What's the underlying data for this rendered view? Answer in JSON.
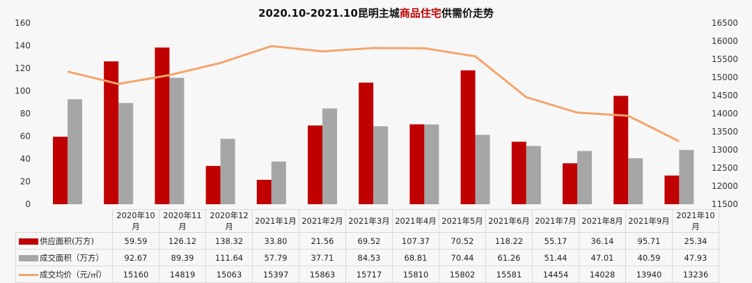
{
  "title": {
    "part1": "2020.10-2021.10昆明主城",
    "highlight": "商品住宅",
    "part2": "供需价走势"
  },
  "chart_data": {
    "type": "bar+line",
    "categories": [
      "2020年10月",
      "2020年11月",
      "2020年12月",
      "2021年1月",
      "2021年2月",
      "2021年3月",
      "2021年4月",
      "2021年5月",
      "2021年6月",
      "2021年7月",
      "2021年8月",
      "2021年9月",
      "2021年10月"
    ],
    "series": [
      {
        "name": "供应面积(万方)",
        "type": "bar",
        "axis": "left",
        "color": "#c00000",
        "values": [
          59.59,
          126.12,
          138.32,
          33.8,
          21.56,
          69.52,
          107.37,
          70.52,
          118.22,
          55.17,
          36.14,
          95.71,
          25.34
        ]
      },
      {
        "name": "成交面积（万方）",
        "type": "bar",
        "axis": "left",
        "color": "#a6a6a6",
        "values": [
          92.67,
          89.39,
          111.64,
          57.79,
          37.71,
          84.53,
          68.81,
          70.44,
          61.26,
          51.44,
          47.01,
          40.59,
          47.93
        ]
      },
      {
        "name": "成交均价（元/㎡）",
        "type": "line",
        "axis": "right",
        "color": "#f4a46a",
        "values": [
          15160,
          14819,
          15063,
          15397,
          15863,
          15717,
          15810,
          15802,
          15581,
          14454,
          14028,
          13940,
          13236
        ]
      }
    ],
    "left_ylim": [
      0,
      160
    ],
    "left_ticks": [
      "0",
      "20",
      "40",
      "60",
      "80",
      "100",
      "120",
      "140",
      "160"
    ],
    "right_ylim": [
      11500,
      16500
    ],
    "right_ticks": [
      "11500",
      "12000",
      "12500",
      "13000",
      "13500",
      "14000",
      "14500",
      "15000",
      "15500",
      "16000",
      "16500"
    ],
    "grid": false,
    "legend": "data-table-bottom"
  }
}
